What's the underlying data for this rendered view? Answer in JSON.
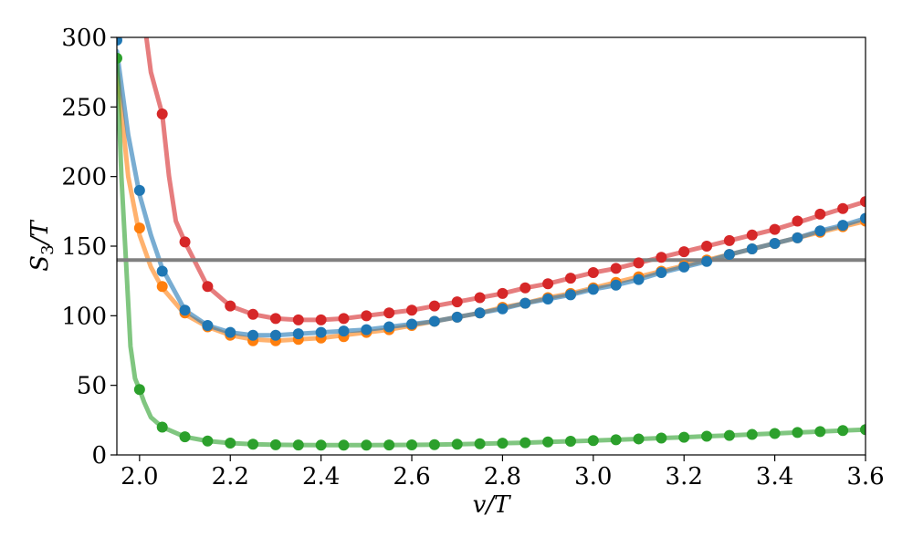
{
  "chart_data": {
    "type": "line",
    "xlabel": "v/T",
    "ylabel": "S3/T",
    "xlabel_parts": {
      "main": "v/T"
    },
    "ylabel_parts": {
      "main": "S",
      "sub": "3",
      "rest": "/T"
    },
    "xlim": [
      1.95,
      3.6
    ],
    "ylim": [
      0,
      300
    ],
    "xticks": [
      2.0,
      2.2,
      2.4,
      2.6,
      2.8,
      3.0,
      3.2,
      3.4,
      3.6
    ],
    "xtick_labels": [
      "2.0",
      "2.2",
      "2.4",
      "2.6",
      "2.8",
      "3.0",
      "3.2",
      "3.4",
      "3.6"
    ],
    "yticks": [
      0,
      50,
      100,
      150,
      200,
      250,
      300
    ],
    "ytick_labels": [
      "0",
      "50",
      "100",
      "150",
      "200",
      "250",
      "300"
    ],
    "grid": false,
    "hline": {
      "y": 140,
      "color": "#808080"
    },
    "series": [
      {
        "color": "#ff7f0e",
        "line_x": [
          1.95,
          1.975,
          2.0,
          2.025,
          2.05,
          2.1,
          2.15,
          2.2,
          2.25,
          2.3,
          2.35,
          2.4,
          2.45,
          2.5,
          2.55,
          2.6,
          2.65,
          2.7,
          2.75,
          2.8,
          2.85,
          2.9,
          2.95,
          3.0,
          3.05,
          3.1,
          3.15,
          3.2,
          3.25,
          3.3,
          3.35,
          3.4,
          3.45,
          3.5,
          3.55,
          3.6
        ],
        "line_y": [
          280,
          200,
          158,
          135,
          120,
          101,
          92,
          86,
          83,
          82,
          83,
          84,
          86,
          88,
          90,
          93,
          96,
          99,
          102,
          106,
          109,
          113,
          116,
          120,
          124,
          128,
          132,
          136,
          140,
          144,
          148,
          152,
          156,
          160,
          164,
          168
        ],
        "points_x": [
          2.0,
          2.05,
          2.1,
          2.15,
          2.2,
          2.25,
          2.3,
          2.35,
          2.4,
          2.45,
          2.5,
          2.55,
          2.6,
          2.65,
          2.7,
          2.75,
          2.8,
          2.85,
          2.9,
          2.95,
          3.0,
          3.05,
          3.1,
          3.15,
          3.2,
          3.25,
          3.3,
          3.35,
          3.4,
          3.45,
          3.5,
          3.55,
          3.6
        ],
        "points_y": [
          163,
          121,
          102,
          92,
          86,
          82,
          82,
          83,
          84,
          85,
          88,
          90,
          93,
          96,
          99,
          102,
          106,
          109,
          113,
          116,
          120,
          124,
          128,
          132,
          136,
          140,
          144,
          148,
          152,
          156,
          160,
          164,
          168
        ]
      },
      {
        "color": "#1f77b4",
        "line_x": [
          1.95,
          1.975,
          2.0,
          2.025,
          2.05,
          2.1,
          2.15,
          2.2,
          2.25,
          2.3,
          2.35,
          2.4,
          2.45,
          2.5,
          2.55,
          2.6,
          2.65,
          2.7,
          2.75,
          2.8,
          2.85,
          2.9,
          2.95,
          3.0,
          3.05,
          3.1,
          3.15,
          3.2,
          3.25,
          3.3,
          3.35,
          3.4,
          3.45,
          3.5,
          3.55,
          3.6
        ],
        "line_y": [
          290,
          230,
          187,
          158,
          134,
          104,
          93,
          88,
          86,
          86,
          87,
          88,
          89,
          90,
          92,
          94,
          96,
          99,
          102,
          105,
          109,
          112,
          115,
          119,
          122,
          126,
          131,
          135,
          139,
          144,
          148,
          152,
          156,
          161,
          165,
          170
        ],
        "points_x": [
          1.95,
          2.0,
          2.05,
          2.1,
          2.15,
          2.2,
          2.25,
          2.3,
          2.35,
          2.4,
          2.45,
          2.5,
          2.55,
          2.6,
          2.65,
          2.7,
          2.75,
          2.8,
          2.85,
          2.9,
          2.95,
          3.0,
          3.05,
          3.1,
          3.15,
          3.2,
          3.25,
          3.3,
          3.35,
          3.4,
          3.45,
          3.5,
          3.55,
          3.6
        ],
        "points_y": [
          298,
          190,
          132,
          104,
          93,
          88,
          86,
          86,
          87,
          88,
          89,
          90,
          92,
          94,
          96,
          99,
          102,
          105,
          109,
          112,
          115,
          119,
          122,
          126,
          131,
          135,
          139,
          144,
          148,
          152,
          156,
          161,
          165,
          170
        ]
      },
      {
        "color": "#d62728",
        "line_x": [
          2.015,
          2.025,
          2.05,
          2.065,
          2.08,
          2.1,
          2.15,
          2.2,
          2.25,
          2.3,
          2.35,
          2.4,
          2.45,
          2.5,
          2.55,
          2.6,
          2.65,
          2.7,
          2.75,
          2.8,
          2.85,
          2.9,
          2.95,
          3.0,
          3.05,
          3.1,
          3.15,
          3.2,
          3.25,
          3.3,
          3.35,
          3.4,
          3.45,
          3.5,
          3.55,
          3.6
        ],
        "line_y": [
          300,
          275,
          245,
          200,
          168,
          153,
          121,
          107,
          101,
          98,
          97,
          97,
          98,
          100,
          102,
          104,
          107,
          110,
          113,
          116,
          120,
          123,
          127,
          131,
          134,
          138,
          142,
          146,
          150,
          154,
          158,
          162,
          167,
          172,
          177,
          182
        ],
        "points_x": [
          2.05,
          2.1,
          2.15,
          2.2,
          2.25,
          2.3,
          2.35,
          2.4,
          2.45,
          2.5,
          2.55,
          2.6,
          2.65,
          2.7,
          2.75,
          2.8,
          2.85,
          2.9,
          2.95,
          3.0,
          3.05,
          3.1,
          3.15,
          3.2,
          3.25,
          3.3,
          3.35,
          3.4,
          3.45,
          3.5,
          3.55,
          3.6
        ],
        "points_y": [
          245,
          153,
          121,
          107,
          101,
          98,
          97,
          97,
          98,
          100,
          102,
          104,
          107,
          110,
          113,
          116,
          120,
          123,
          127,
          131,
          134,
          138,
          142,
          146,
          150,
          154,
          158,
          162,
          168,
          173,
          177,
          182
        ]
      },
      {
        "color": "#2ca02c",
        "line_x": [
          1.95,
          1.96,
          1.97,
          1.98,
          1.99,
          2.0,
          2.01,
          2.025,
          2.05,
          2.1,
          2.15,
          2.2,
          2.25,
          2.3,
          2.35,
          2.4,
          2.45,
          2.5,
          2.55,
          2.6,
          2.65,
          2.7,
          2.75,
          2.8,
          2.85,
          2.9,
          2.95,
          3.0,
          3.05,
          3.1,
          3.15,
          3.2,
          3.25,
          3.3,
          3.35,
          3.4,
          3.45,
          3.5,
          3.55,
          3.6
        ],
        "line_y": [
          285,
          200,
          140,
          78,
          55,
          47,
          38,
          27,
          20,
          13,
          10,
          8.5,
          7.7,
          7.3,
          7.1,
          7.0,
          7.0,
          7.0,
          7.1,
          7.2,
          7.4,
          7.7,
          8.0,
          8.4,
          8.8,
          9.3,
          9.8,
          10.3,
          10.9,
          11.5,
          12.1,
          12.7,
          13.4,
          14.0,
          14.7,
          15.4,
          16.1,
          16.8,
          17.5,
          18.2
        ],
        "points_x": [
          1.95,
          2.0,
          2.05,
          2.1,
          2.15,
          2.2,
          2.25,
          2.3,
          2.35,
          2.4,
          2.45,
          2.5,
          2.55,
          2.6,
          2.65,
          2.7,
          2.75,
          2.8,
          2.85,
          2.9,
          2.95,
          3.0,
          3.05,
          3.1,
          3.15,
          3.2,
          3.25,
          3.3,
          3.35,
          3.4,
          3.45,
          3.5,
          3.55,
          3.6
        ],
        "points_y": [
          285,
          47,
          20,
          13,
          10,
          8.5,
          7.7,
          7.3,
          7.1,
          7.0,
          7.0,
          7.0,
          7.1,
          7.2,
          7.4,
          7.7,
          8.0,
          8.4,
          8.8,
          9.3,
          9.8,
          10.3,
          10.9,
          11.5,
          12.1,
          12.7,
          13.4,
          14.0,
          14.7,
          15.4,
          16.1,
          16.8,
          17.5,
          18.2
        ]
      }
    ]
  }
}
